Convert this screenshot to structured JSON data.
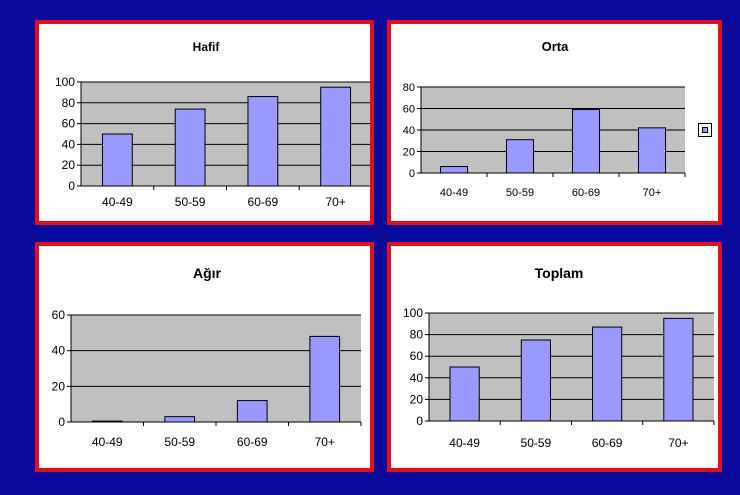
{
  "colors": {
    "background": "#0a0a9c",
    "panel_border": "#e0101e",
    "plot_area": "#c0c0c0",
    "bar_fill": "#9999ff",
    "bar_stroke": "#000000"
  },
  "chart_data": [
    {
      "type": "bar",
      "title": "Hafif",
      "categories": [
        "40-49",
        "50-59",
        "60-69",
        "70+"
      ],
      "values": [
        50,
        74,
        86,
        95
      ],
      "ylim": [
        0,
        100
      ],
      "yticks": [
        0,
        20,
        40,
        60,
        80,
        100
      ],
      "grid": true,
      "legend": false
    },
    {
      "type": "bar",
      "title": "Orta",
      "categories": [
        "40-49",
        "50-59",
        "60-69",
        "70+"
      ],
      "values": [
        6,
        31,
        59,
        42
      ],
      "ylim": [
        0,
        80
      ],
      "yticks": [
        0,
        20,
        40,
        60,
        80
      ],
      "grid": true,
      "legend": true
    },
    {
      "type": "bar",
      "title": "Ağır",
      "categories": [
        "40-49",
        "50-59",
        "60-69",
        "70+"
      ],
      "values": [
        0.5,
        3,
        12,
        48
      ],
      "ylim": [
        0,
        60
      ],
      "yticks": [
        0,
        20,
        40,
        60
      ],
      "grid": true,
      "legend": false
    },
    {
      "type": "bar",
      "title": "Toplam",
      "categories": [
        "40-49",
        "50-59",
        "60-69",
        "70+"
      ],
      "values": [
        50,
        75,
        87,
        95
      ],
      "ylim": [
        0,
        100
      ],
      "yticks": [
        0,
        20,
        40,
        60,
        80,
        100
      ],
      "grid": true,
      "legend": false
    }
  ]
}
